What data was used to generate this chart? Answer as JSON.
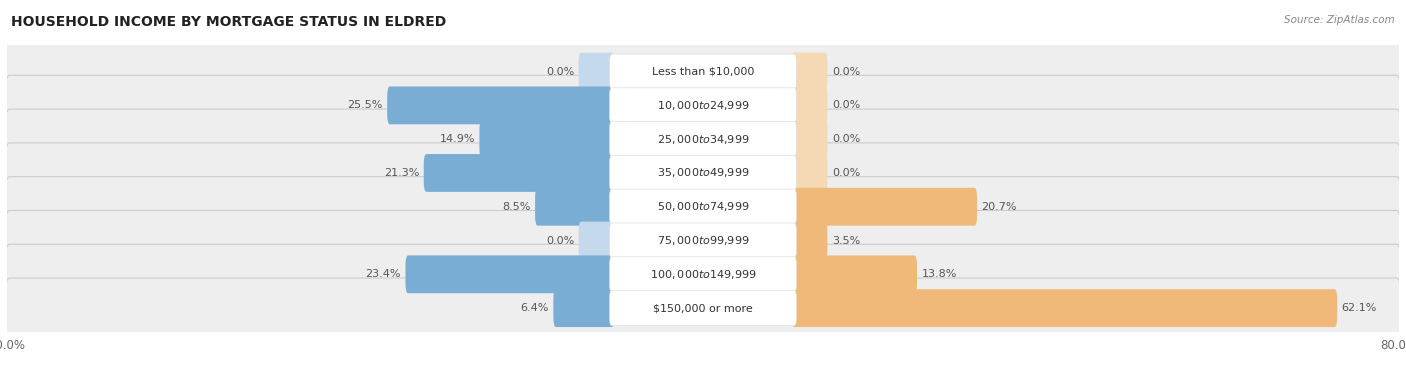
{
  "title": "HOUSEHOLD INCOME BY MORTGAGE STATUS IN ELDRED",
  "source": "Source: ZipAtlas.com",
  "categories": [
    "Less than $10,000",
    "$10,000 to $24,999",
    "$25,000 to $34,999",
    "$35,000 to $49,999",
    "$50,000 to $74,999",
    "$75,000 to $99,999",
    "$100,000 to $149,999",
    "$150,000 or more"
  ],
  "without_mortgage": [
    0.0,
    25.5,
    14.9,
    21.3,
    8.5,
    0.0,
    23.4,
    6.4
  ],
  "with_mortgage": [
    0.0,
    0.0,
    0.0,
    0.0,
    20.7,
    3.5,
    13.8,
    62.1
  ],
  "color_without": "#7aadd4",
  "color_with": "#f0b97a",
  "axis_limit": 80.0,
  "title_fontsize": 10,
  "source_fontsize": 7.5,
  "tick_fontsize": 8.5,
  "bar_label_fontsize": 8,
  "cat_label_fontsize": 8,
  "row_bg_color": "#eeeeee",
  "row_border_color": "#cccccc",
  "label_box_color": "#ffffff",
  "label_box_border": "#dddddd",
  "text_color": "#333333",
  "value_color": "#555555"
}
